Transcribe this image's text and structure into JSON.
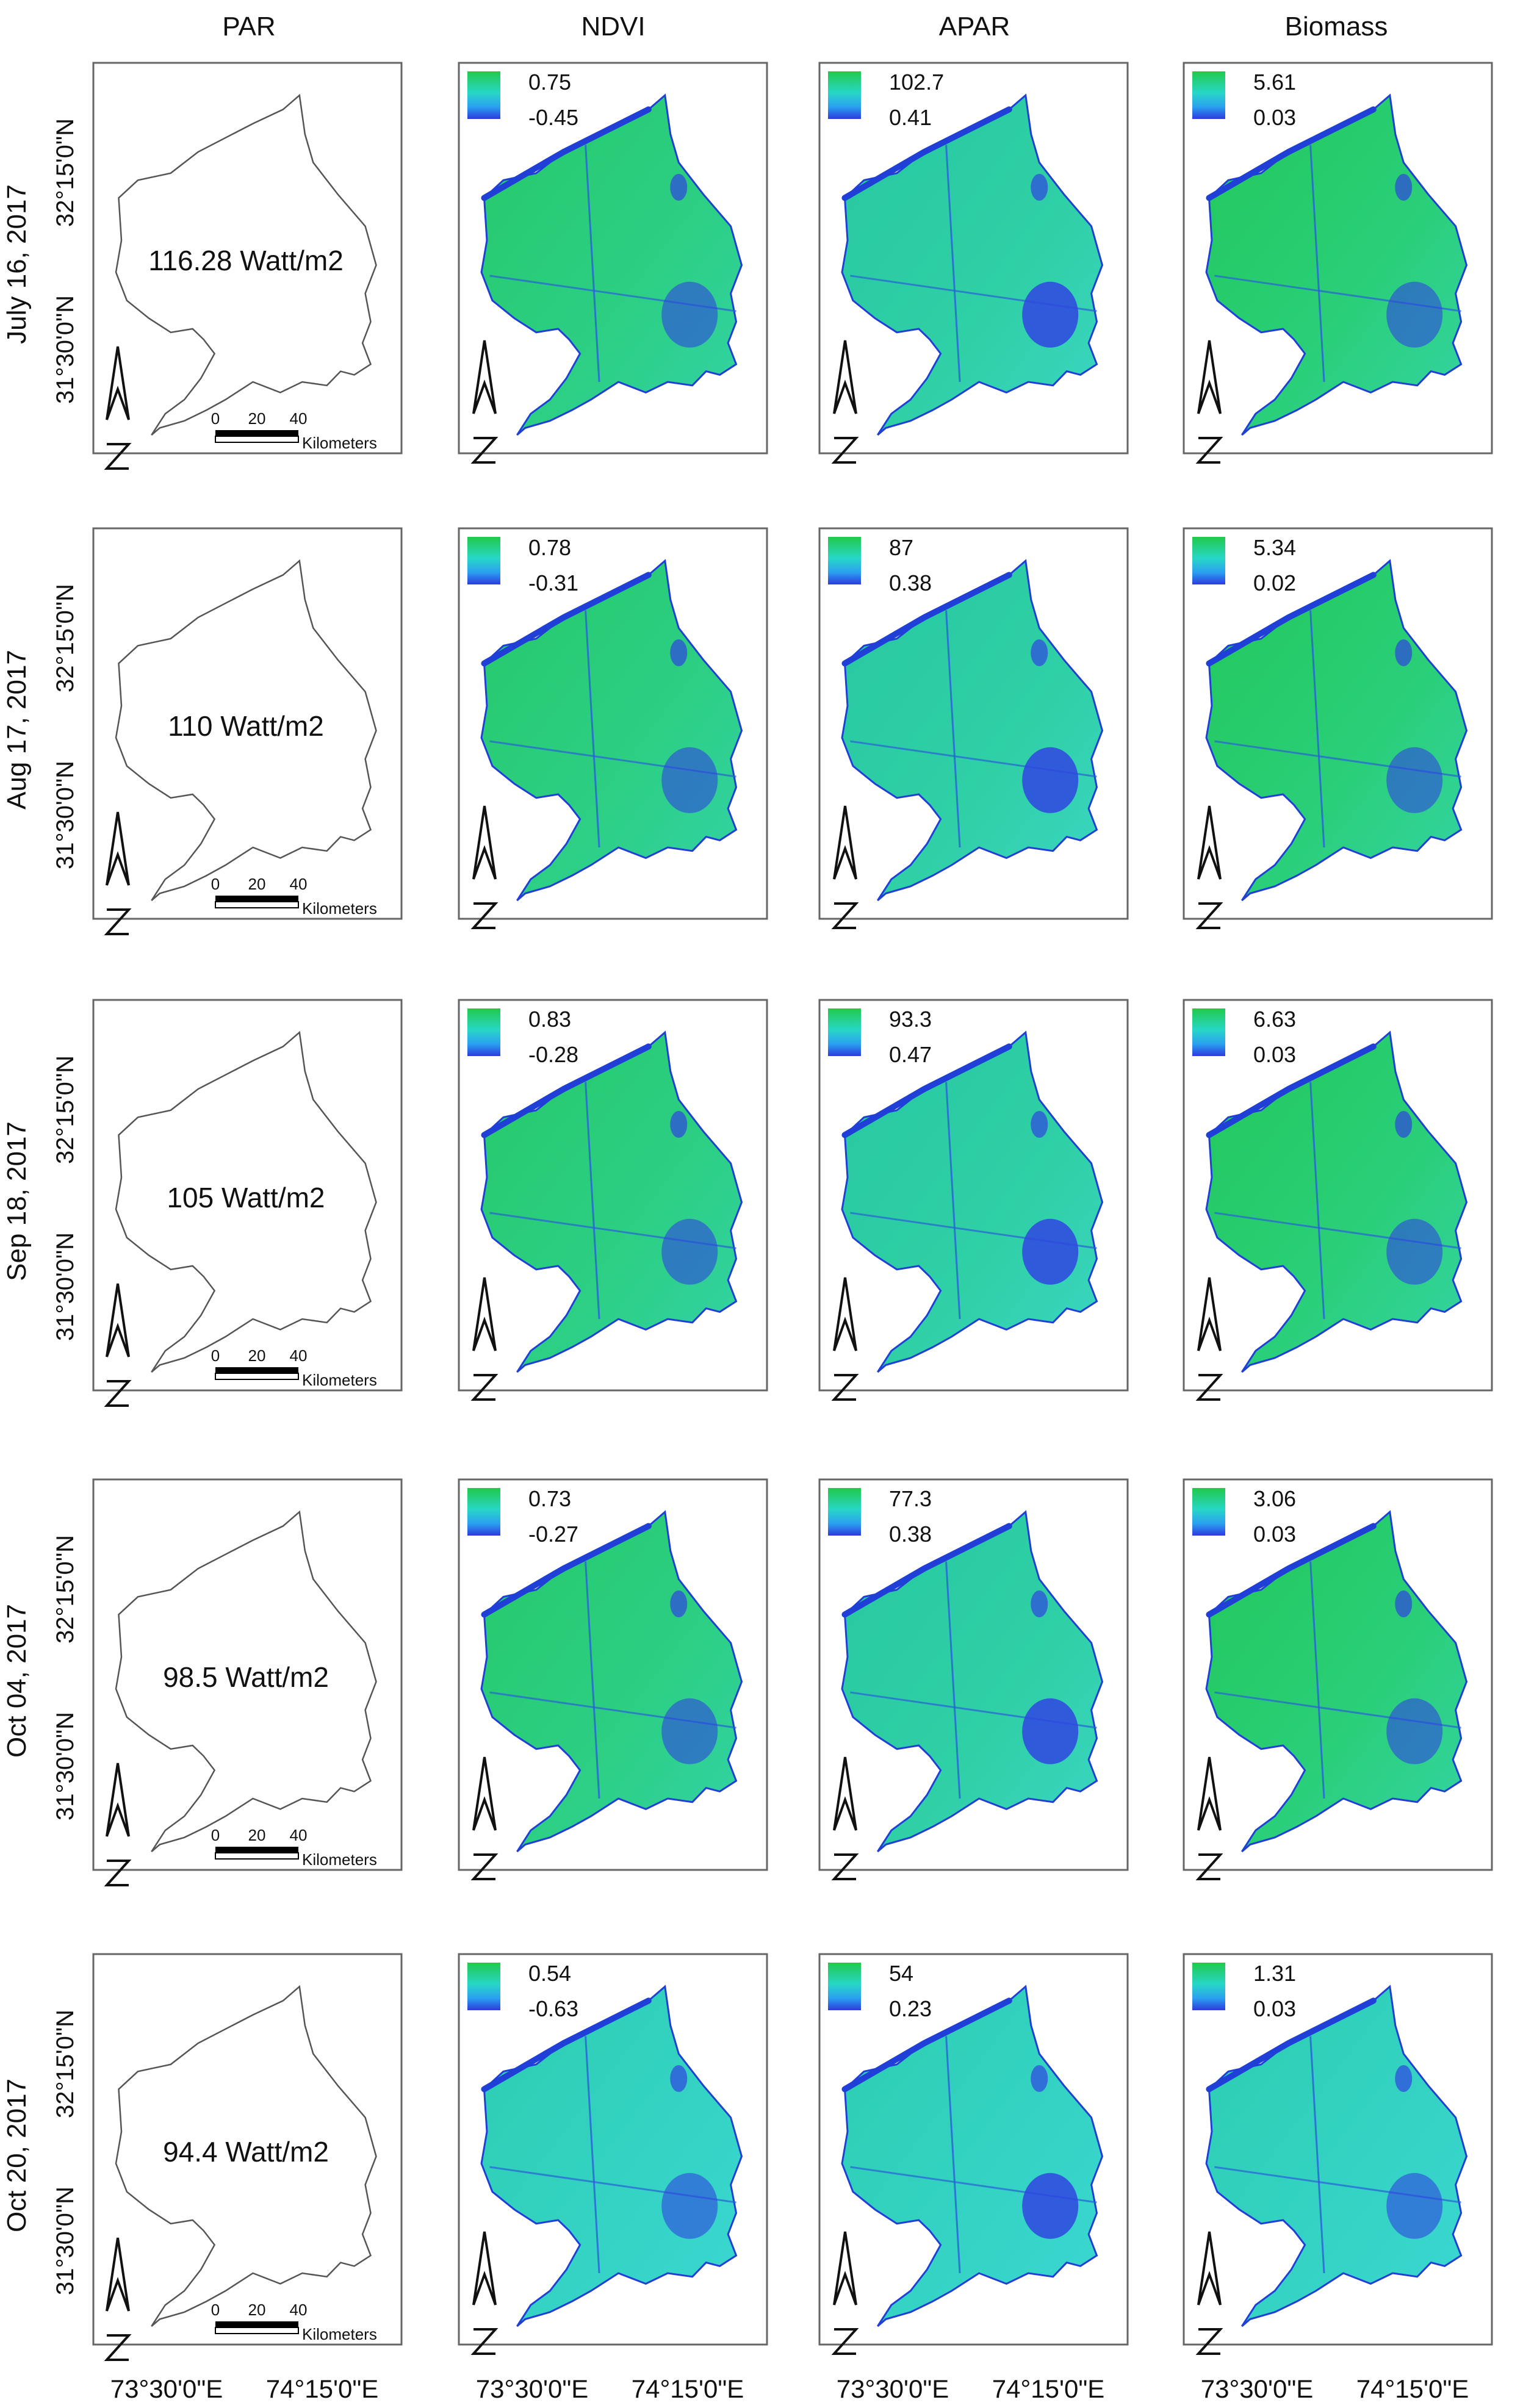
{
  "columns": [
    {
      "key": "par",
      "title": "PAR"
    },
    {
      "key": "ndvi",
      "title": "NDVI"
    },
    {
      "key": "apar",
      "title": "APAR"
    },
    {
      "key": "biomass",
      "title": "Biomass"
    }
  ],
  "latitude_labels": [
    "32°15'0\"N",
    "31°30'0\"N"
  ],
  "longitude_labels": [
    "73°30'0\"E",
    "74°15'0\"E"
  ],
  "scale_bar": {
    "ticks": [
      "0",
      "20",
      "40"
    ],
    "unit": "Kilometers"
  },
  "rows": [
    {
      "date": "July 16, 2017",
      "par": "116.28 Watt/m2",
      "ndvi": {
        "max": "0.75",
        "min": "-0.45"
      },
      "apar": {
        "max": "102.7",
        "min": "0.41"
      },
      "biomass": {
        "max": "5.61",
        "min": "0.03"
      }
    },
    {
      "date": "Aug 17, 2017",
      "par": "110 Watt/m2",
      "ndvi": {
        "max": "0.78",
        "min": "-0.31"
      },
      "apar": {
        "max": "87",
        "min": "0.38"
      },
      "biomass": {
        "max": "5.34",
        "min": "0.02"
      }
    },
    {
      "date": "Sep 18, 2017",
      "par": "105 Watt/m2",
      "ndvi": {
        "max": "0.83",
        "min": "-0.28"
      },
      "apar": {
        "max": "93.3",
        "min": "0.47"
      },
      "biomass": {
        "max": "6.63",
        "min": "0.03"
      }
    },
    {
      "date": "Oct 04, 2017",
      "par": "98.5 Watt/m2",
      "ndvi": {
        "max": "0.73",
        "min": "-0.27"
      },
      "apar": {
        "max": "77.3",
        "min": "0.38"
      },
      "biomass": {
        "max": "3.06",
        "min": "0.03"
      }
    },
    {
      "date": "Oct 20, 2017",
      "par": "94.4 Watt/m2",
      "ndvi": {
        "max": "0.54",
        "min": "-0.63"
      },
      "apar": {
        "max": "54",
        "min": "0.23"
      },
      "biomass": {
        "max": "1.31",
        "min": "0.03"
      }
    }
  ],
  "colors": {
    "vegetation_high": "#22c55a",
    "vegetation_mid": "#2ed3b8",
    "low": "#2f45e0",
    "water": "#1f3fd6",
    "outline": "#555555"
  }
}
